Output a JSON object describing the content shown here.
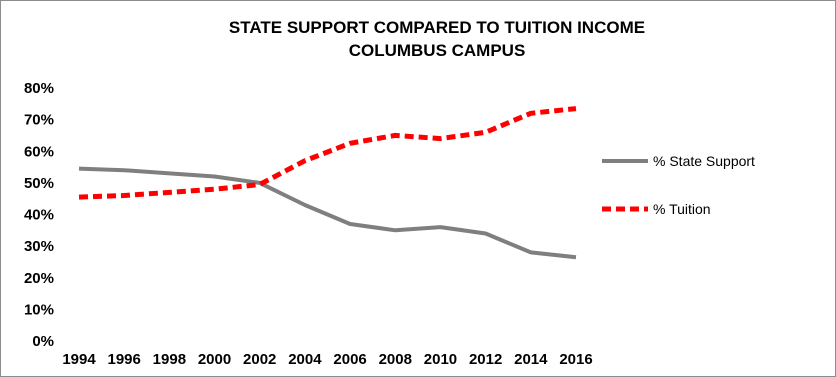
{
  "chart_data": {
    "type": "line",
    "title": "STATE SUPPORT COMPARED TO TUITION INCOME",
    "subtitle": "COLUMBUS CAMPUS",
    "xlabel": "",
    "ylabel": "",
    "x": [
      "1994",
      "1996",
      "1998",
      "2000",
      "2002",
      "2004",
      "2006",
      "2008",
      "2010",
      "2012",
      "2014",
      "2016"
    ],
    "ylim": [
      0,
      80
    ],
    "yticks": [
      "0%",
      "10%",
      "20%",
      "30%",
      "40%",
      "50%",
      "60%",
      "70%",
      "80%"
    ],
    "grid": false,
    "legend_position": "right",
    "series": [
      {
        "name": "% State Support",
        "color": "#7f7f7f",
        "style": "solid",
        "values": [
          54.5,
          54,
          53,
          52,
          50,
          43,
          37,
          35,
          36,
          34,
          28,
          26.5
        ]
      },
      {
        "name": "% Tuition",
        "color": "#ff0000",
        "style": "dashed",
        "values": [
          45.5,
          46,
          47,
          48,
          49.5,
          57,
          62.5,
          65,
          64,
          66,
          72,
          73.5
        ]
      }
    ]
  }
}
